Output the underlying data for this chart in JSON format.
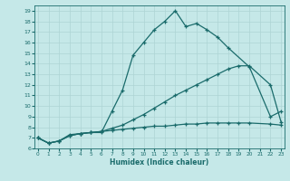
{
  "xlabel": "Humidex (Indice chaleur)",
  "ylabel": "",
  "bg_color": "#c5e8e8",
  "grid_color": "#aed4d4",
  "line_color": "#1a6b6b",
  "line1_x": [
    0,
    1,
    2,
    3,
    4,
    5,
    6,
    7,
    8,
    9,
    10,
    11,
    12,
    13,
    14,
    15,
    16,
    17,
    18,
    20,
    22,
    23
  ],
  "line1_y": [
    7.0,
    6.5,
    6.7,
    7.3,
    7.4,
    7.5,
    7.5,
    9.5,
    11.5,
    14.8,
    16.0,
    17.2,
    18.0,
    19.0,
    17.5,
    17.8,
    17.2,
    16.5,
    15.5,
    13.7,
    9.0,
    9.5
  ],
  "line2_x": [
    0,
    1,
    2,
    3,
    4,
    5,
    6,
    7,
    8,
    9,
    10,
    11,
    12,
    13,
    14,
    15,
    16,
    17,
    18,
    19,
    20,
    22,
    23
  ],
  "line2_y": [
    7.0,
    6.5,
    6.7,
    7.2,
    7.4,
    7.5,
    7.6,
    7.9,
    8.2,
    8.7,
    9.2,
    9.8,
    10.4,
    11.0,
    11.5,
    12.0,
    12.5,
    13.0,
    13.5,
    13.8,
    13.8,
    12.0,
    8.5
  ],
  "line3_x": [
    0,
    1,
    2,
    3,
    4,
    5,
    6,
    7,
    8,
    9,
    10,
    11,
    12,
    13,
    14,
    15,
    16,
    17,
    18,
    19,
    20,
    22,
    23
  ],
  "line3_y": [
    7.0,
    6.5,
    6.7,
    7.2,
    7.4,
    7.5,
    7.6,
    7.7,
    7.8,
    7.9,
    8.0,
    8.1,
    8.1,
    8.2,
    8.3,
    8.3,
    8.4,
    8.4,
    8.4,
    8.4,
    8.4,
    8.3,
    8.2
  ],
  "xlim": [
    -0.3,
    23.3
  ],
  "ylim": [
    6.0,
    19.5
  ],
  "yticks": [
    6,
    7,
    8,
    9,
    10,
    11,
    12,
    13,
    14,
    15,
    16,
    17,
    18,
    19
  ],
  "xticks": [
    0,
    1,
    2,
    3,
    4,
    5,
    6,
    7,
    8,
    9,
    10,
    11,
    12,
    13,
    14,
    15,
    16,
    17,
    18,
    19,
    20,
    21,
    22,
    23
  ]
}
